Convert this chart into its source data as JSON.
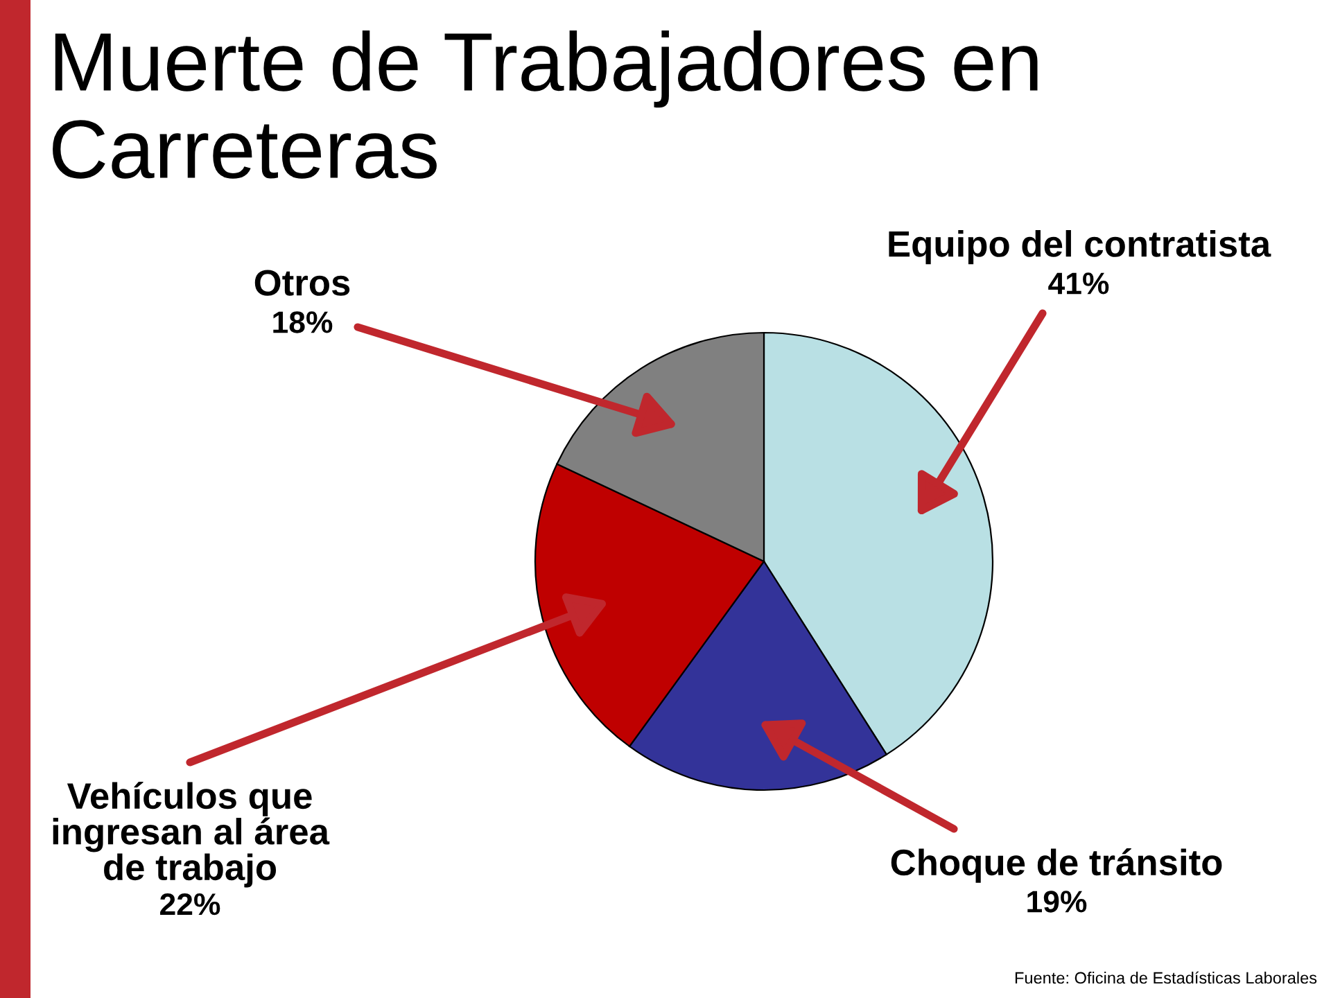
{
  "chart_data": {
    "type": "pie",
    "title": "Muerte de Trabajadores en Carreteras",
    "categories": [
      "Equipo del contratista",
      "Choque de tránsito",
      "Vehículos que ingresan al área de trabajo",
      "Otros"
    ],
    "values": [
      41,
      19,
      22,
      18
    ],
    "value_labels": [
      "41%",
      "19%",
      "22%",
      "18%"
    ],
    "colors": [
      "#b9e0e4",
      "#333399",
      "#bf0000",
      "#808080"
    ],
    "annotations": [
      "Fuente: Oficina de Estadísticas Laborales"
    ]
  }
}
